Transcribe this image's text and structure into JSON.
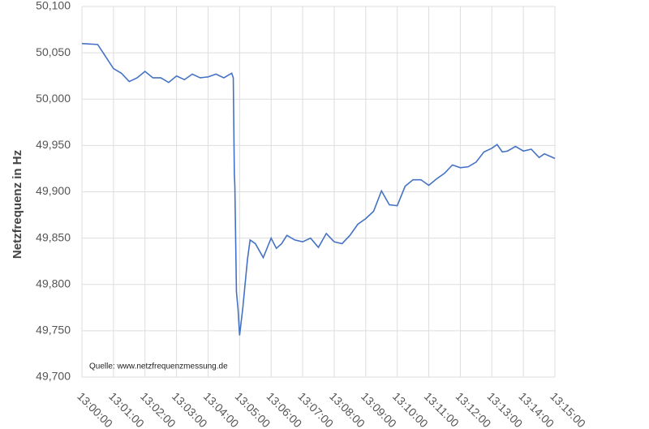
{
  "chart_data": {
    "type": "line",
    "y_label": "Netzfrequenz in Hz",
    "annotation": "Quelle: www.netzfrequenzmessung.de",
    "x": [
      "13:00:00",
      "13:00:30",
      "13:00:45",
      "13:01:00",
      "13:01:15",
      "13:01:30",
      "13:01:45",
      "13:02:00",
      "13:02:15",
      "13:02:30",
      "13:02:45",
      "13:03:00",
      "13:03:15",
      "13:03:30",
      "13:03:45",
      "13:04:00",
      "13:04:15",
      "13:04:30",
      "13:04:45",
      "13:04:48",
      "13:04:50",
      "13:04:51",
      "13:04:54",
      "13:04:57",
      "13:05:00",
      "13:05:06",
      "13:05:15",
      "13:05:20",
      "13:05:30",
      "13:05:45",
      "13:06:00",
      "13:06:10",
      "13:06:20",
      "13:06:30",
      "13:06:45",
      "13:07:00",
      "13:07:15",
      "13:07:30",
      "13:07:45",
      "13:08:00",
      "13:08:15",
      "13:08:30",
      "13:08:45",
      "13:09:00",
      "13:09:15",
      "13:09:30",
      "13:09:45",
      "13:10:00",
      "13:10:15",
      "13:10:30",
      "13:10:45",
      "13:11:00",
      "13:11:15",
      "13:11:30",
      "13:11:45",
      "13:12:00",
      "13:12:15",
      "13:12:30",
      "13:12:45",
      "13:13:00",
      "13:13:10",
      "13:13:20",
      "13:13:30",
      "13:13:45",
      "13:14:00",
      "13:14:15",
      "13:14:30",
      "13:14:40",
      "13:15:00"
    ],
    "series": [
      {
        "color": "#4472c4",
        "values": [
          50.06,
          50.059,
          50.046,
          50.033,
          50.028,
          50.019,
          50.023,
          50.03,
          50.023,
          50.023,
          50.018,
          50.025,
          50.021,
          50.027,
          50.023,
          50.024,
          50.027,
          50.023,
          50.028,
          50.023,
          49.919,
          49.906,
          49.792,
          49.774,
          49.745,
          49.774,
          49.827,
          49.848,
          49.844,
          49.829,
          49.85,
          49.839,
          49.844,
          49.853,
          49.848,
          49.846,
          49.85,
          49.84,
          49.855,
          49.846,
          49.844,
          49.853,
          49.865,
          49.871,
          49.879,
          49.901,
          49.886,
          49.885,
          49.906,
          49.913,
          49.913,
          49.907,
          49.914,
          49.92,
          49.929,
          49.926,
          49.927,
          49.932,
          49.943,
          49.947,
          49.951,
          49.943,
          49.944,
          49.949,
          49.944,
          49.946,
          49.937,
          49.941,
          49.936
        ]
      }
    ],
    "xlim": [
      "13:00:00",
      "13:15:00"
    ],
    "xticks": [
      "13:00:00",
      "13:01:00",
      "13:02:00",
      "13:03:00",
      "13:04:00",
      "13:05:00",
      "13:06:00",
      "13:07:00",
      "13:08:00",
      "13:09:00",
      "13:10:00",
      "13:11:00",
      "13:12:00",
      "13:13:00",
      "13:14:00",
      "13:15:00"
    ],
    "ylim": [
      49.7,
      50.1
    ],
    "yticks": [
      {
        "value": 49.7,
        "label": "49,700"
      },
      {
        "value": 49.75,
        "label": "49,750"
      },
      {
        "value": 49.8,
        "label": "49,800"
      },
      {
        "value": 49.85,
        "label": "49,850"
      },
      {
        "value": 49.9,
        "label": "49,900"
      },
      {
        "value": 49.95,
        "label": "49,950"
      },
      {
        "value": 50.0,
        "label": "50,000"
      },
      {
        "value": 50.05,
        "label": "50,050"
      },
      {
        "value": 50.1,
        "label": "50,100"
      }
    ],
    "grid": true
  }
}
